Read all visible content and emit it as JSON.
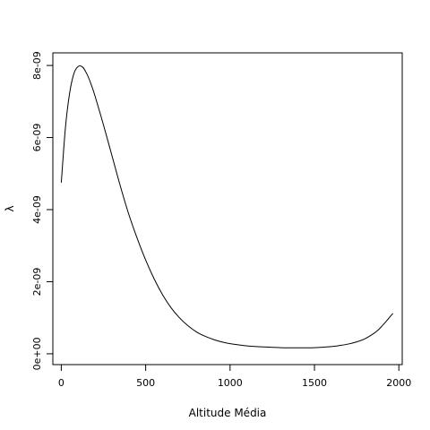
{
  "chart_data": {
    "type": "line",
    "xlabel": "Altitude Média",
    "ylabel": "λ",
    "xlim": [
      -50,
      2020
    ],
    "ylim": [
      -3e-10,
      8.35e-09
    ],
    "x_ticks": [
      {
        "value": 0,
        "label": "0"
      },
      {
        "value": 500,
        "label": "500"
      },
      {
        "value": 1000,
        "label": "1000"
      },
      {
        "value": 1500,
        "label": "1500"
      },
      {
        "value": 2000,
        "label": "2000"
      }
    ],
    "y_ticks": [
      {
        "value": 0,
        "label": "0e+00"
      },
      {
        "value": 2e-09,
        "label": "2e-09"
      },
      {
        "value": 4e-09,
        "label": "4e-09"
      },
      {
        "value": 6e-09,
        "label": "6e-09"
      },
      {
        "value": 8e-09,
        "label": "8e-09"
      }
    ],
    "grid": false,
    "series": [
      {
        "color": "#000000",
        "x": [
          0,
          25,
          50,
          75,
          100,
          125,
          150,
          175,
          200,
          250,
          300,
          350,
          400,
          450,
          500,
          550,
          600,
          650,
          700,
          750,
          800,
          850,
          900,
          950,
          1000,
          1100,
          1200,
          1300,
          1400,
          1500,
          1600,
          1650,
          1700,
          1750,
          1800,
          1850,
          1875,
          1900,
          1925,
          1950,
          1965
        ],
        "y": [
          4.75e-09,
          6.3e-09,
          7.25e-09,
          7.78e-09,
          7.97e-09,
          7.96e-09,
          7.78e-09,
          7.5e-09,
          7.15e-09,
          6.35e-09,
          5.5e-09,
          4.65e-09,
          3.87e-09,
          3.2e-09,
          2.6e-09,
          2.08e-09,
          1.64e-09,
          1.28e-09,
          1e-09,
          7.8e-10,
          6.1e-10,
          4.9e-10,
          4e-10,
          3.3e-10,
          2.8e-10,
          2.2e-10,
          1.9e-10,
          1.7e-10,
          1.65e-10,
          1.7e-10,
          2e-10,
          2.3e-10,
          2.7e-10,
          3.3e-10,
          4.2e-10,
          5.6e-10,
          6.5e-10,
          7.7e-10,
          9e-10,
          1.04e-09,
          1.12e-09
        ]
      }
    ]
  }
}
